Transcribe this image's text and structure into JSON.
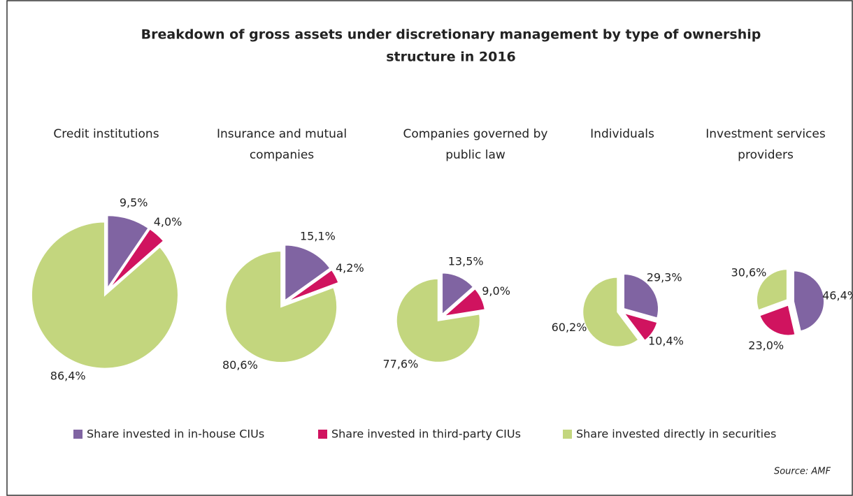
{
  "title": [
    "Breakdown of gross assets under discretionary management by type of ownership",
    "structure in 2016"
  ],
  "source": "Source: AMF",
  "categories": [
    "Share invested in in-house CIUs",
    "Share invested in third-party CIUs",
    "Share invested directly in securities"
  ],
  "colors": [
    "#8064a2",
    "#d0135f",
    "#c3d67e"
  ],
  "chart_data": [
    {
      "type": "pie",
      "title": [
        "Credit institutions"
      ],
      "values": [
        9.5,
        4.0,
        86.4
      ],
      "value_labels": [
        "9,5%",
        "4,0%",
        "86,4%"
      ]
    },
    {
      "type": "pie",
      "title": [
        "Insurance and mutual",
        "companies"
      ],
      "values": [
        15.1,
        4.2,
        80.6
      ],
      "value_labels": [
        "15,1%",
        "4,2%",
        "80,6%"
      ]
    },
    {
      "type": "pie",
      "title": [
        "Companies governed by",
        "public law"
      ],
      "values": [
        13.5,
        9.0,
        77.6
      ],
      "value_labels": [
        "13,5%",
        "9,0%",
        "77,6%"
      ]
    },
    {
      "type": "pie",
      "title": [
        "Individuals"
      ],
      "values": [
        29.3,
        10.4,
        60.2
      ],
      "value_labels": [
        "29,3%",
        "10,4%",
        "60,2%"
      ]
    },
    {
      "type": "pie",
      "title": [
        "Investment services",
        "providers"
      ],
      "values": [
        46.4,
        23.0,
        30.6
      ],
      "value_labels": [
        "46,4%",
        "23,0%",
        "30,6%"
      ]
    }
  ]
}
